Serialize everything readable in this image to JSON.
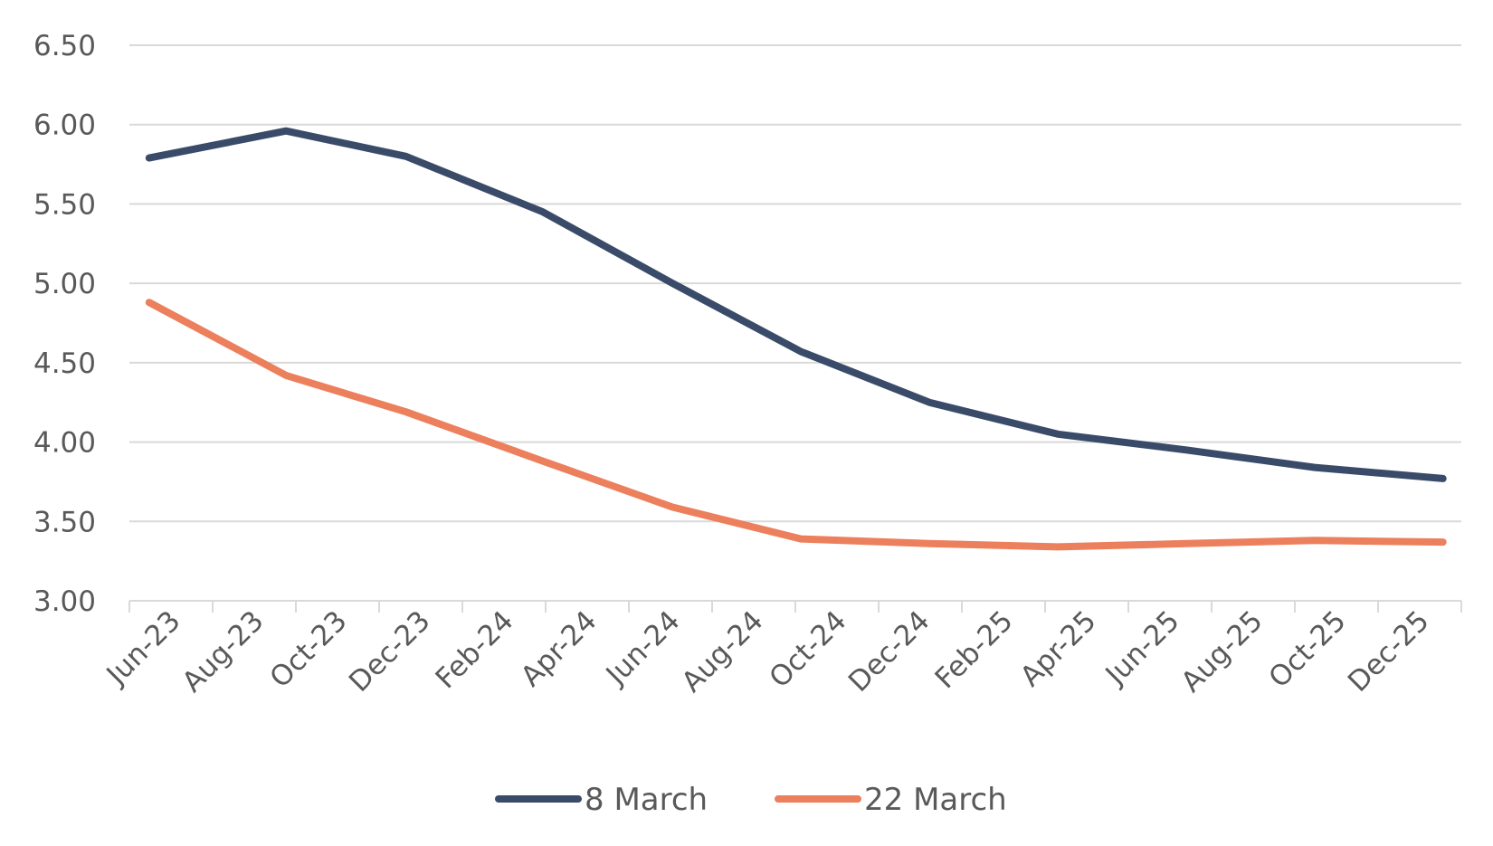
{
  "chart_data": {
    "type": "line",
    "categories": [
      "Jun-23",
      "Aug-23",
      "Oct-23",
      "Dec-23",
      "Feb-24",
      "Apr-24",
      "Jun-24",
      "Aug-24",
      "Oct-24",
      "Dec-24",
      "Feb-25",
      "Apr-25",
      "Jun-25",
      "Aug-25",
      "Oct-25",
      "Dec-25"
    ],
    "x": [
      "2023-06-15",
      "2023-09-20",
      "2023-12-14",
      "2024-03-20",
      "2024-06-20",
      "2024-09-19",
      "2024-12-19",
      "2025-03-20",
      "2025-06-19",
      "2025-09-18",
      "2025-12-18"
    ],
    "series": [
      {
        "name": "8 March",
        "color": "#3a4b69",
        "values": [
          5.79,
          5.96,
          5.8,
          5.45,
          5.0,
          4.57,
          4.25,
          4.05,
          3.95,
          3.84,
          3.77
        ]
      },
      {
        "name": "22 March",
        "color": "#ec7f5c",
        "values": [
          4.88,
          4.42,
          4.19,
          3.88,
          3.59,
          3.39,
          3.36,
          3.34,
          3.36,
          3.38,
          3.37
        ]
      }
    ],
    "ylim": [
      3.0,
      6.5
    ],
    "yticks": [
      "3.00",
      "3.50",
      "4.00",
      "4.50",
      "5.00",
      "5.50",
      "6.00",
      "6.50"
    ],
    "xlim": [
      "2023-06-01",
      "2025-12-31"
    ],
    "grid": true,
    "legend": "bottom",
    "title": "",
    "xlabel": "",
    "ylabel": ""
  }
}
